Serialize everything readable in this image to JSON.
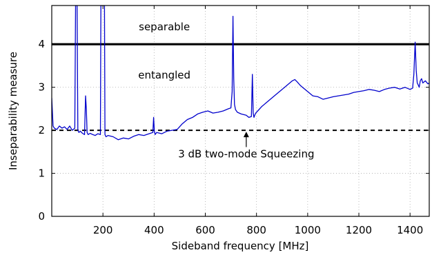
{
  "chart_data": {
    "type": "line",
    "xlabel": "Sideband frequency [MHz]",
    "ylabel": "Inseparability measure",
    "xlim": [
      0,
      1475
    ],
    "ylim": [
      0,
      4.9
    ],
    "x_ticks": [
      200,
      400,
      600,
      800,
      1000,
      1200,
      1400
    ],
    "y_ticks": [
      0,
      1,
      2,
      3,
      4
    ],
    "grid": true,
    "reference_lines": [
      {
        "y": 4,
        "style": "solid",
        "color": "#000000"
      },
      {
        "y": 2,
        "style": "dashed",
        "color": "#000000"
      }
    ],
    "annotations": [
      {
        "text": "separable",
        "x": 440,
        "y": 4.32
      },
      {
        "text": "entangled",
        "x": 440,
        "y": 3.2
      },
      {
        "text": "3 dB two-mode Squeezing",
        "x": 760,
        "y": 1.37,
        "arrow_to": [
          760,
          2.0
        ]
      }
    ],
    "series": [
      {
        "color": "#0000cc",
        "x": [
          0,
          5,
          10,
          20,
          30,
          40,
          50,
          60,
          70,
          80,
          90,
          93,
          96,
          99,
          102,
          106,
          112,
          120,
          128,
          132,
          135,
          138,
          142,
          150,
          160,
          170,
          180,
          190,
          192,
          194,
          196,
          198,
          200,
          202,
          204,
          206,
          208,
          212,
          220,
          240,
          260,
          280,
          300,
          320,
          340,
          360,
          380,
          395,
          398,
          401,
          404,
          410,
          430,
          450,
          470,
          490,
          510,
          530,
          550,
          570,
          590,
          610,
          630,
          650,
          670,
          690,
          700,
          705,
          708,
          711,
          714,
          718,
          725,
          740,
          760,
          770,
          780,
          784,
          787,
          790,
          793,
          797,
          805,
          820,
          840,
          860,
          880,
          900,
          920,
          940,
          950,
          960,
          970,
          980,
          1000,
          1020,
          1040,
          1060,
          1080,
          1100,
          1120,
          1140,
          1160,
          1180,
          1200,
          1220,
          1240,
          1260,
          1280,
          1300,
          1320,
          1340,
          1360,
          1380,
          1400,
          1410,
          1415,
          1420,
          1424,
          1428,
          1432,
          1436,
          1440,
          1445,
          1450,
          1460,
          1470,
          1475
        ],
        "y": [
          2.75,
          2.1,
          2.05,
          2.02,
          2.1,
          2.05,
          2.08,
          2.02,
          2.1,
          2.0,
          2.05,
          4.9,
          4.9,
          4.9,
          2.0,
          1.95,
          1.98,
          1.93,
          1.9,
          2.8,
          2.5,
          1.95,
          1.9,
          1.93,
          1.9,
          1.88,
          1.92,
          1.9,
          4.9,
          4.9,
          4.9,
          4.9,
          4.9,
          4.9,
          4.9,
          4.9,
          1.9,
          1.85,
          1.88,
          1.85,
          1.78,
          1.82,
          1.8,
          1.86,
          1.9,
          1.88,
          1.92,
          1.95,
          2.3,
          1.98,
          1.9,
          1.95,
          1.92,
          1.98,
          2.0,
          2.02,
          2.15,
          2.25,
          2.3,
          2.38,
          2.42,
          2.45,
          2.4,
          2.42,
          2.45,
          2.5,
          2.52,
          2.9,
          4.65,
          3.2,
          2.6,
          2.48,
          2.42,
          2.38,
          2.35,
          2.3,
          2.32,
          3.3,
          2.4,
          2.3,
          2.35,
          2.4,
          2.45,
          2.55,
          2.65,
          2.75,
          2.85,
          2.95,
          3.05,
          3.15,
          3.18,
          3.12,
          3.05,
          3.0,
          2.9,
          2.8,
          2.78,
          2.72,
          2.75,
          2.78,
          2.8,
          2.82,
          2.84,
          2.88,
          2.9,
          2.92,
          2.95,
          2.93,
          2.9,
          2.95,
          2.98,
          3.0,
          2.96,
          3.0,
          2.95,
          2.98,
          3.3,
          4.05,
          3.4,
          3.1,
          3.05,
          3.0,
          3.15,
          3.2,
          3.1,
          3.15,
          3.08,
          3.1
        ]
      }
    ]
  }
}
